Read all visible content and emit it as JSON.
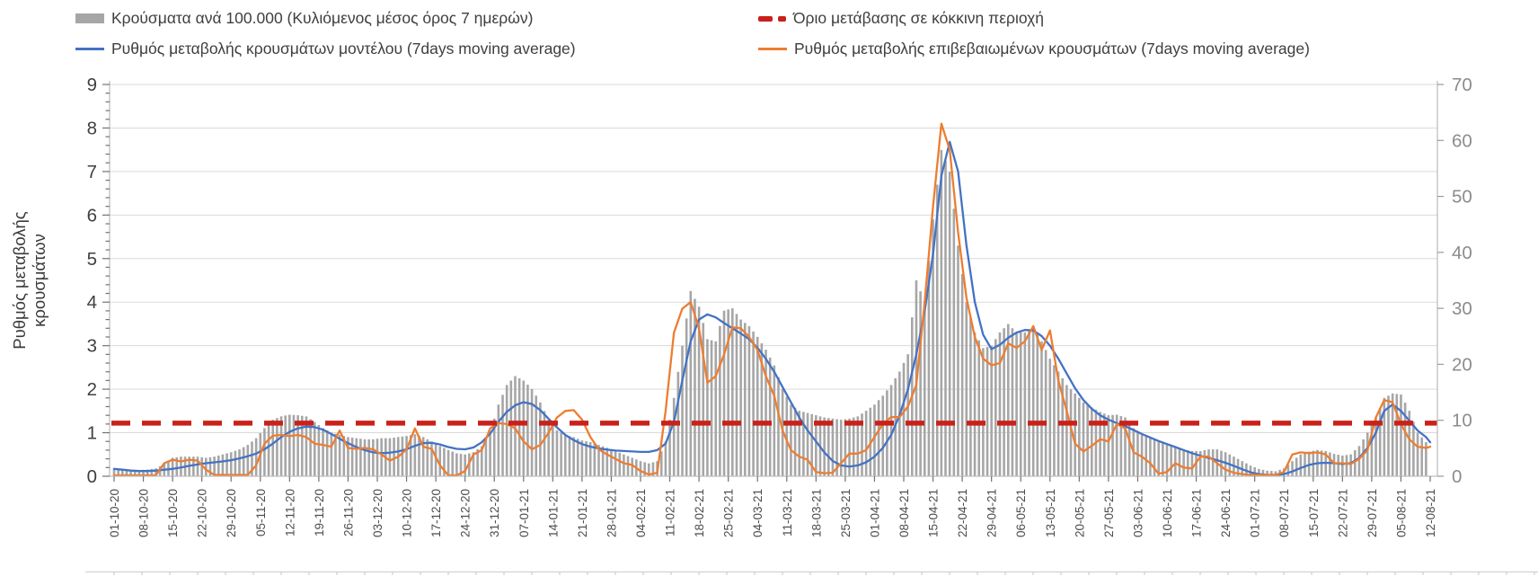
{
  "legend": {
    "items": [
      {
        "label": "Κρούσματα ανά 100.000 (Κυλιόμενος μέσος όρος 7 ημερών)",
        "marker": "bar-swatch",
        "color": "#a6a6a6"
      },
      {
        "label": "Όριο μετάβασης σε κόκκινη περιοχή",
        "marker": "dashed-line",
        "color": "#c9211a"
      },
      {
        "label": "Ρυθμός μεταβολής κρουσμάτων μοντέλου (7days moving average)",
        "marker": "line",
        "color": "#4472c4"
      },
      {
        "label": "Ρυθμός μεταβολής επιβεβαιωμένων κρουσμάτων (7days moving average)",
        "marker": "line",
        "color": "#ed7d31"
      }
    ]
  },
  "chart_data": {
    "type": "bar",
    "subtype": "combo-bar-line-dual-axis",
    "title": "",
    "xlabel": "",
    "x_tick_labels": [
      "01-10-20",
      "08-10-20",
      "15-10-20",
      "22-10-20",
      "29-10-20",
      "05-11-20",
      "12-11-20",
      "19-11-20",
      "26-11-20",
      "03-12-20",
      "10-12-20",
      "17-12-20",
      "24-12-20",
      "31-12-20",
      "07-01-21",
      "14-01-21",
      "21-01-21",
      "28-01-21",
      "04-02-21",
      "11-02-21",
      "18-02-21",
      "25-02-21",
      "04-03-21",
      "11-03-21",
      "18-03-21",
      "25-03-21",
      "01-04-21",
      "08-04-21",
      "15-04-21",
      "22-04-21",
      "29-04-21",
      "06-05-21",
      "13-05-21",
      "20-05-21",
      "27-05-21",
      "03-06-21",
      "10-06-21",
      "17-06-21",
      "24-06-21",
      "01-07-21",
      "08-07-21",
      "15-07-21",
      "22-07-21",
      "29-07-21",
      "05-08-21",
      "12-08-21"
    ],
    "x_label_interval_days": 7,
    "sample_interval_days": 2,
    "total_days": 316,
    "y_left": {
      "title": "Ρυθμός μεταβολής κρουσμάτων",
      "min": 0,
      "max": 9,
      "tick_step": 1,
      "grid": true
    },
    "y_right": {
      "title": "",
      "min": 0,
      "max": 70,
      "tick_step": 10,
      "grid": false
    },
    "threshold": {
      "name": "Όριο μετάβασης σε κόκκινη περιοχή",
      "value_left_axis": 1.22,
      "approx_value_right_axis": 9.5,
      "color": "#c9211a"
    },
    "series": [
      {
        "name": "Κρούσματα ανά 100.000 (Κυλιόμενος μέσος όρος 7 ημερών)",
        "type": "bar",
        "axis": "right",
        "color": "#a6a6a6",
        "values": [
          1.4,
          1.2,
          1.2,
          1.1,
          1.2,
          1.4,
          2.2,
          3.3,
          3.5,
          3.5,
          3.5,
          3.3,
          3.5,
          3.9,
          4.3,
          4.8,
          5.6,
          6.8,
          8.6,
          10.1,
          10.7,
          11.0,
          10.9,
          10.7,
          9.7,
          8.6,
          7.8,
          7.4,
          7.0,
          6.8,
          6.6,
          6.6,
          6.8,
          6.8,
          7.0,
          7.2,
          7.5,
          7.0,
          6.2,
          5.4,
          4.7,
          4.1,
          3.9,
          4.3,
          5.4,
          7.8,
          12.8,
          16.3,
          17.9,
          17.1,
          15.6,
          13.2,
          10.1,
          8.2,
          7.4,
          7.0,
          6.4,
          6.1,
          5.6,
          5.1,
          4.5,
          3.9,
          3.3,
          2.7,
          2.3,
          2.7,
          6.2,
          14.0,
          23.3,
          33.1,
          30.3,
          24.5,
          24.1,
          29.6,
          30.0,
          28.0,
          26.8,
          24.9,
          22.6,
          19.8,
          15.6,
          12.8,
          11.7,
          11.3,
          10.9,
          10.5,
          10.3,
          10.1,
          10.3,
          10.7,
          11.7,
          12.8,
          14.4,
          16.3,
          18.7,
          21.8,
          35.0,
          31.1,
          45.9,
          58.3,
          54.4,
          41.2,
          31.1,
          25.7,
          22.9,
          23.3,
          25.7,
          27.2,
          25.7,
          25.7,
          26.8,
          24.1,
          21.0,
          18.7,
          16.3,
          14.8,
          13.2,
          12.3,
          11.5,
          10.9,
          11.0,
          10.5,
          8.6,
          7.4,
          6.8,
          6.4,
          5.8,
          5.3,
          4.8,
          4.5,
          4.5,
          4.8,
          4.8,
          4.3,
          3.5,
          2.7,
          1.9,
          1.3,
          1.0,
          0.9,
          1.4,
          2.7,
          3.9,
          4.4,
          4.7,
          4.5,
          4.0,
          3.7,
          3.9,
          5.4,
          7.8,
          10.5,
          14.0,
          14.8,
          14.6,
          11.7,
          7.8,
          6.1,
          5.4
        ]
      },
      {
        "name": "Ρυθμός μεταβολής κρουσμάτων μοντέλου (7days moving average)",
        "type": "line",
        "axis": "left",
        "color": "#4472c4",
        "values": [
          0.17,
          0.15,
          0.13,
          0.12,
          0.12,
          0.13,
          0.15,
          0.17,
          0.2,
          0.24,
          0.27,
          0.3,
          0.32,
          0.34,
          0.37,
          0.41,
          0.46,
          0.52,
          0.62,
          0.75,
          0.9,
          1.02,
          1.1,
          1.14,
          1.13,
          1.07,
          0.97,
          0.86,
          0.76,
          0.67,
          0.6,
          0.55,
          0.53,
          0.54,
          0.57,
          0.62,
          0.7,
          0.76,
          0.77,
          0.73,
          0.67,
          0.63,
          0.62,
          0.66,
          0.78,
          0.98,
          1.25,
          1.48,
          1.63,
          1.7,
          1.66,
          1.52,
          1.32,
          1.12,
          0.95,
          0.83,
          0.74,
          0.68,
          0.64,
          0.61,
          0.59,
          0.58,
          0.57,
          0.56,
          0.56,
          0.6,
          0.75,
          1.25,
          2.2,
          3.1,
          3.6,
          3.72,
          3.65,
          3.52,
          3.4,
          3.28,
          3.15,
          2.95,
          2.7,
          2.4,
          2.05,
          1.7,
          1.35,
          1.05,
          0.8,
          0.55,
          0.35,
          0.25,
          0.22,
          0.25,
          0.32,
          0.45,
          0.65,
          0.95,
          1.4,
          2.0,
          2.8,
          3.8,
          5.1,
          6.9,
          7.68,
          7.0,
          5.3,
          4.0,
          3.25,
          2.92,
          3.02,
          3.18,
          3.3,
          3.36,
          3.35,
          3.22,
          3.0,
          2.7,
          2.36,
          2.02,
          1.75,
          1.55,
          1.4,
          1.3,
          1.22,
          1.15,
          1.06,
          0.97,
          0.89,
          0.81,
          0.74,
          0.67,
          0.6,
          0.53,
          0.47,
          0.42,
          0.37,
          0.31,
          0.24,
          0.16,
          0.09,
          0.05,
          0.03,
          0.03,
          0.05,
          0.11,
          0.19,
          0.26,
          0.3,
          0.31,
          0.3,
          0.28,
          0.3,
          0.42,
          0.65,
          1.0,
          1.5,
          1.65,
          1.5,
          1.28,
          1.05,
          0.9,
          0.78
        ]
      },
      {
        "name": "Ρυθμός μεταβολής επιβεβαιωμένων κρουσμάτων (7days moving average)",
        "type": "line",
        "axis": "left",
        "color": "#ed7d31",
        "values": [
          0.02,
          0.02,
          0.02,
          0.02,
          0.02,
          0.02,
          0.3,
          0.38,
          0.34,
          0.38,
          0.36,
          0.15,
          0.03,
          0.03,
          0.03,
          0.03,
          0.03,
          0.25,
          0.75,
          0.93,
          0.95,
          0.92,
          0.95,
          0.9,
          0.75,
          0.72,
          0.68,
          1.05,
          0.65,
          0.63,
          0.65,
          0.62,
          0.5,
          0.36,
          0.45,
          0.62,
          1.1,
          0.68,
          0.63,
          0.25,
          0.02,
          0.02,
          0.12,
          0.5,
          0.6,
          1.1,
          1.22,
          1.2,
          1.1,
          0.8,
          0.62,
          0.72,
          1.0,
          1.35,
          1.5,
          1.52,
          1.3,
          0.9,
          0.62,
          0.5,
          0.4,
          0.3,
          0.26,
          0.12,
          0.04,
          0.08,
          1.5,
          3.3,
          3.85,
          4.0,
          3.4,
          2.15,
          2.3,
          2.8,
          3.42,
          3.4,
          3.2,
          2.9,
          2.3,
          1.85,
          1.05,
          0.6,
          0.45,
          0.38,
          0.1,
          0.07,
          0.08,
          0.3,
          0.52,
          0.52,
          0.6,
          0.9,
          1.2,
          1.36,
          1.36,
          1.6,
          2.1,
          4.0,
          6.2,
          8.1,
          7.5,
          5.6,
          4.1,
          3.2,
          2.7,
          2.55,
          2.6,
          3.05,
          2.95,
          3.1,
          3.45,
          2.9,
          3.35,
          2.2,
          1.5,
          0.75,
          0.57,
          0.7,
          0.85,
          0.8,
          1.2,
          1.1,
          0.55,
          0.45,
          0.3,
          0.06,
          0.1,
          0.3,
          0.2,
          0.18,
          0.45,
          0.45,
          0.3,
          0.15,
          0.08,
          0.05,
          0.03,
          0.03,
          0.03,
          0.03,
          0.1,
          0.5,
          0.55,
          0.53,
          0.55,
          0.5,
          0.3,
          0.3,
          0.28,
          0.4,
          0.6,
          1.35,
          1.75,
          1.7,
          1.2,
          0.85,
          0.68,
          0.65,
          0.68
        ]
      }
    ],
    "colors": {
      "grid": "#d9d9d9",
      "axis_line": "#bfbfbf",
      "tick": "#8c8c8c",
      "left_tick_text": "#404040",
      "right_tick_text": "#8c8c8c",
      "x_tick_text": "#4d4d4d"
    }
  }
}
